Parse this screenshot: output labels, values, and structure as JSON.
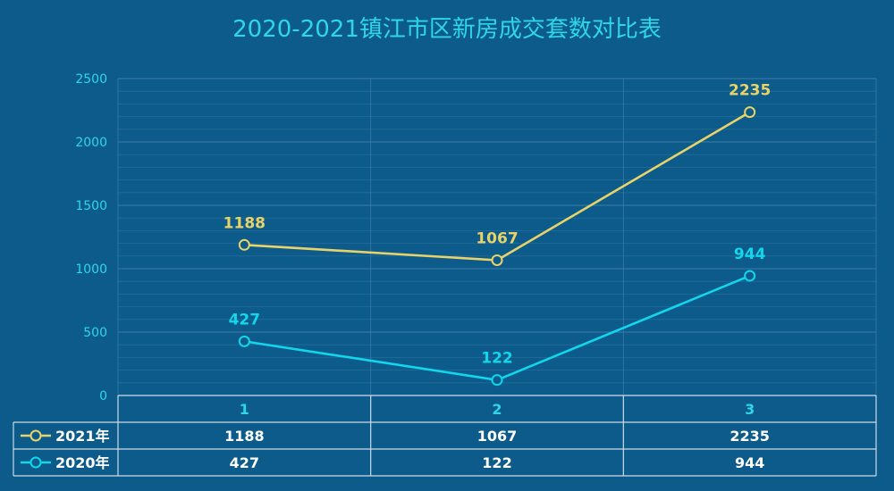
{
  "chart_data": {
    "type": "line",
    "title": "2020-2021镇江市区新房成交套数对比表",
    "categories": [
      "1",
      "2",
      "3"
    ],
    "series": [
      {
        "name": "2021年",
        "values": [
          1188,
          1067,
          2235
        ],
        "color": "#e8d36a"
      },
      {
        "name": "2020年",
        "values": [
          427,
          122,
          944
        ],
        "color": "#12d6ec"
      }
    ],
    "ylim": [
      0,
      2500
    ],
    "yticks": [
      0,
      500,
      1000,
      1500,
      2000,
      2500
    ],
    "minor_step": 100,
    "grid": true,
    "legend": "data-table-left",
    "data_table": true
  },
  "colors": {
    "background": "#0c5b8a",
    "axis_text": "#2fd6e8",
    "grid_line": "#3b7aa6",
    "table_border": "#c8dbe8",
    "table_text": "#ffffff"
  }
}
